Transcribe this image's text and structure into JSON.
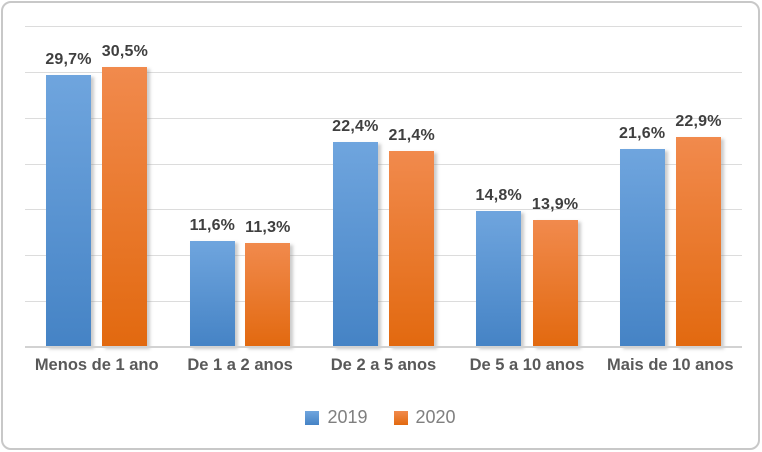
{
  "chart_data": {
    "type": "bar",
    "title": "",
    "xlabel": "",
    "ylabel": "",
    "categories": [
      "Menos de 1 ano",
      "De 1 a 2 anos",
      "De 2 a 5 anos",
      "De 5 a 10 anos",
      "Mais de 10 anos"
    ],
    "series": [
      {
        "name": "2019",
        "values": [
          29.7,
          11.6,
          22.4,
          14.8,
          21.6
        ],
        "labels": [
          "29,7%",
          "11,6%",
          "22,4%",
          "14,8%",
          "21,6%"
        ],
        "color": "#5B9BD5",
        "color_light": "#6FA5DE",
        "color_dark": "#4583C5"
      },
      {
        "name": "2020",
        "values": [
          30.5,
          11.3,
          21.4,
          13.9,
          22.9
        ],
        "labels": [
          "30,5%",
          "11,3%",
          "21,4%",
          "13,9%",
          "22,9%"
        ],
        "color": "#ED7D31",
        "color_light": "#F18A4D",
        "color_dark": "#E2690F"
      }
    ],
    "ylim": [
      0,
      35
    ],
    "gridline_interval": 5,
    "grid": true,
    "yaxis_labels_visible": false,
    "legend_position": "bottom",
    "value_suffix": "%",
    "decimal_separator": ","
  },
  "frame": {
    "border_color": "#C8C8C8",
    "background": "#FFFFFF",
    "gridline_color": "#DCDCDC",
    "axis_line_color": "#D2D2D2",
    "data_label_color": "#3F3F3F",
    "category_label_color": "#595959",
    "legend_text_color": "#7F7F7F"
  }
}
